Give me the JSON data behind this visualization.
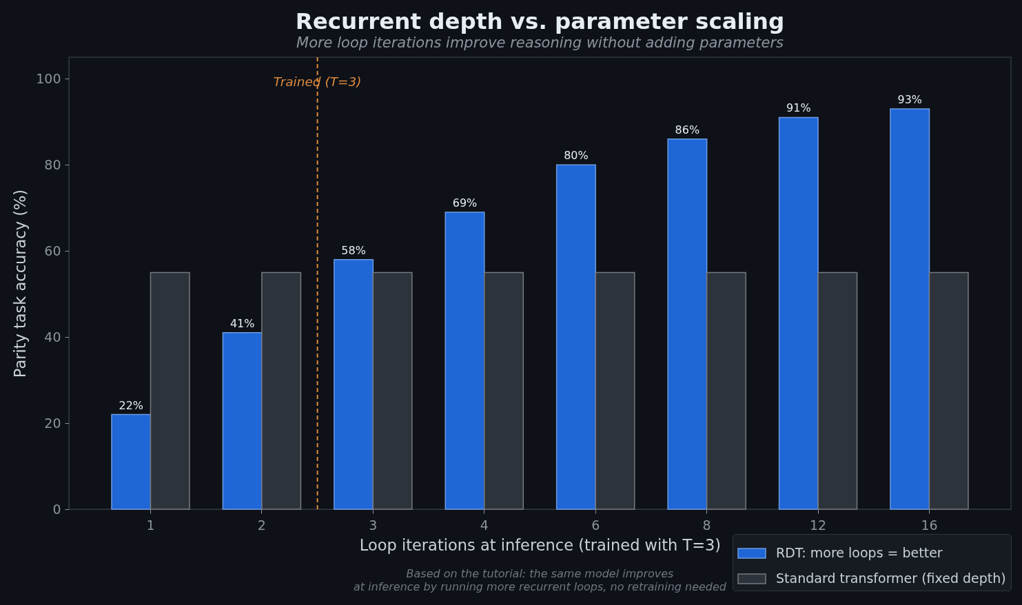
{
  "chart_data": {
    "type": "bar",
    "title": "Recurrent depth vs. parameter scaling",
    "subtitle": "More loop iterations improve reasoning without adding parameters",
    "xlabel": "Loop iterations at inference (trained with T=3)",
    "ylabel": "Parity task accuracy (%)",
    "annotations": [
      "Based on the tutorial: the same model improves\nat inference by running more recurrent loops, no retraining needed"
    ],
    "categories": [
      "1",
      "2",
      "3",
      "4",
      "6",
      "8",
      "12",
      "16"
    ],
    "series": [
      {
        "name": "RDT: more loops = better",
        "color": "#1f66d6",
        "values": [
          22,
          41,
          58,
          69,
          80,
          86,
          91,
          93
        ],
        "value_labels": [
          "22%",
          "41%",
          "58%",
          "69%",
          "80%",
          "86%",
          "91%",
          "93%"
        ]
      },
      {
        "name": "Standard transformer (fixed depth)",
        "color": "#2d333a",
        "values": [
          55,
          55,
          55,
          55,
          55,
          55,
          55,
          55
        ]
      }
    ],
    "ylim": [
      0,
      105
    ],
    "yticks": [
      0,
      20,
      40,
      60,
      80,
      100
    ],
    "ref_lines": [
      {
        "axis": "x",
        "value": "3",
        "label": "Trained (T=3)",
        "color": "#dd8a3e",
        "line_style": "dashed"
      }
    ],
    "legend": "bottom right"
  }
}
